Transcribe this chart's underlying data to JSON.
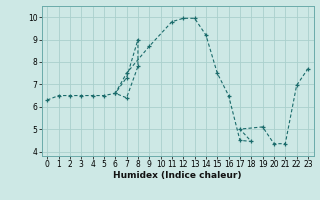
{
  "title": "",
  "xlabel": "Humidex (Indice chaleur)",
  "background_color": "#cde8e5",
  "grid_color": "#aad0cc",
  "line_color": "#1a6b6b",
  "xlim": [
    -0.5,
    23.5
  ],
  "ylim": [
    3.8,
    10.5
  ],
  "xticks": [
    0,
    1,
    2,
    3,
    4,
    5,
    6,
    7,
    8,
    9,
    10,
    11,
    12,
    13,
    14,
    15,
    16,
    17,
    18,
    19,
    20,
    21,
    22,
    23
  ],
  "yticks": [
    4,
    5,
    6,
    7,
    8,
    9,
    10
  ],
  "series": [
    [
      0,
      6.3
    ],
    [
      1,
      6.5
    ],
    [
      2,
      6.5
    ],
    [
      3,
      6.5
    ],
    [
      4,
      6.5
    ],
    [
      5,
      6.5
    ],
    [
      6,
      6.6
    ],
    [
      7,
      7.3
    ],
    [
      8,
      9.0
    ],
    [
      8,
      7.8
    ],
    [
      7,
      6.4
    ],
    [
      6,
      6.6
    ],
    [
      7,
      7.5
    ],
    [
      9,
      8.7
    ],
    [
      11,
      9.8
    ],
    [
      12,
      9.95
    ],
    [
      13,
      9.95
    ],
    [
      14,
      9.2
    ],
    [
      15,
      7.5
    ],
    [
      16,
      6.5
    ],
    [
      17,
      4.5
    ],
    [
      18,
      4.45
    ],
    [
      17,
      5.0
    ],
    [
      19,
      5.1
    ],
    [
      20,
      4.35
    ],
    [
      21,
      4.35
    ],
    [
      22,
      6.95
    ],
    [
      23,
      7.7
    ]
  ]
}
